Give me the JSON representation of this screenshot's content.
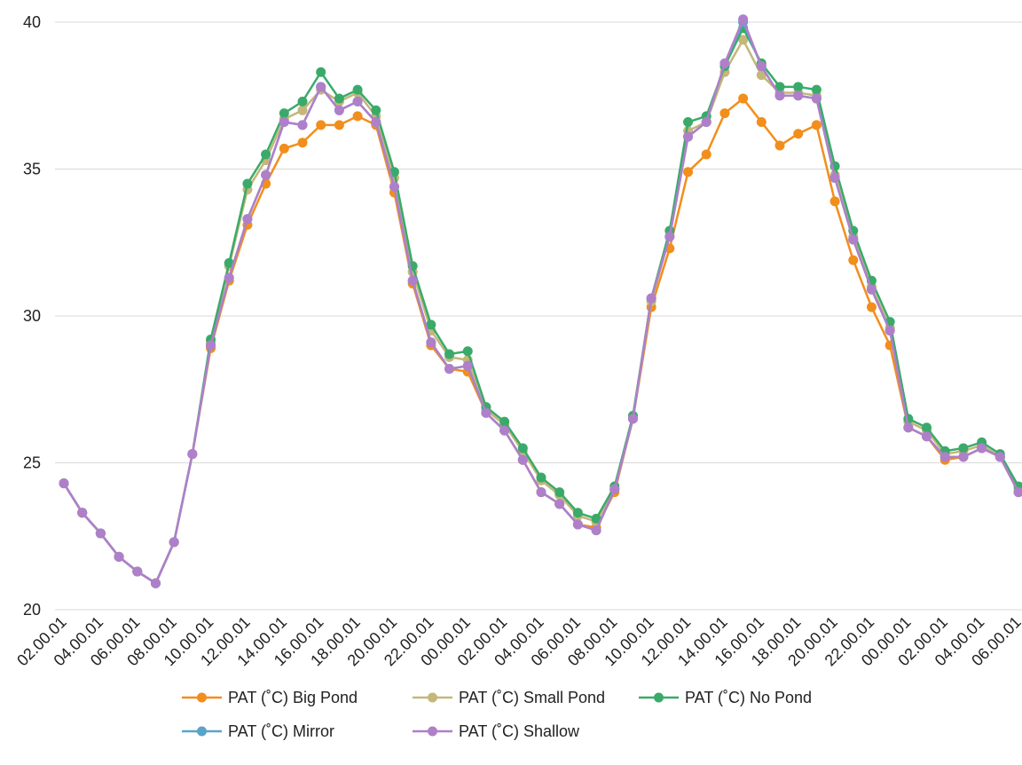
{
  "chart_data": {
    "type": "line",
    "categories": [
      "02.00.01",
      null,
      "04.00.01",
      null,
      "06.00.01",
      null,
      "08.00.01",
      null,
      "10.00.01",
      null,
      "12.00.01",
      null,
      "14.00.01",
      null,
      "16.00.01",
      null,
      "18.00.01",
      null,
      "20.00.01",
      null,
      "22.00.01",
      null,
      "00.00.01",
      null,
      "02.00.01",
      null,
      "04.00.01",
      null,
      "06.00.01",
      null,
      "08.00.01",
      null,
      "10.00.01",
      null,
      "12.00.01",
      null,
      "14.00.01",
      null,
      "16.00.01",
      null,
      "18.00.01",
      null,
      "20.00.01",
      null,
      "22.00.01",
      null,
      "00.00.01",
      null,
      "02.00.01",
      null,
      "04.00.01",
      null,
      "06.00.01"
    ],
    "series": [
      {
        "name": "PAT (˚C) Big Pond",
        "color": "#f28e1c",
        "values": [
          24.3,
          23.3,
          22.6,
          21.8,
          21.3,
          20.9,
          22.3,
          25.3,
          28.9,
          31.2,
          33.1,
          34.5,
          35.7,
          35.9,
          36.5,
          36.5,
          36.8,
          36.5,
          34.2,
          31.1,
          29.0,
          28.2,
          28.1,
          26.7,
          26.1,
          25.1,
          24.0,
          23.6,
          22.9,
          22.8,
          24.0,
          26.5,
          30.3,
          32.3,
          34.9,
          35.5,
          36.9,
          37.4,
          36.6,
          35.8,
          36.2,
          36.5,
          33.9,
          31.9,
          30.3,
          29.0,
          26.2,
          25.9,
          25.1,
          25.2,
          25.5,
          25.2,
          24.0
        ]
      },
      {
        "name": "PAT (˚C) Small Pond",
        "color": "#c4b77a",
        "values": [
          24.3,
          23.3,
          22.6,
          21.8,
          21.3,
          20.9,
          22.3,
          25.3,
          29.1,
          31.7,
          34.3,
          35.3,
          36.7,
          37.0,
          37.7,
          37.3,
          37.6,
          36.8,
          34.7,
          31.5,
          29.5,
          28.6,
          28.5,
          26.8,
          26.3,
          25.4,
          24.4,
          23.9,
          23.2,
          23.0,
          24.1,
          26.6,
          30.5,
          32.7,
          36.3,
          36.6,
          38.3,
          39.4,
          38.2,
          37.6,
          37.6,
          37.5,
          34.8,
          32.7,
          31.0,
          29.6,
          26.4,
          26.1,
          25.3,
          25.4,
          25.6,
          25.2,
          24.1
        ]
      },
      {
        "name": "PAT (˚C) No Pond",
        "color": "#3aaa6a",
        "values": [
          24.3,
          23.3,
          22.6,
          21.8,
          21.3,
          20.9,
          22.3,
          25.3,
          29.2,
          31.8,
          34.5,
          35.5,
          36.9,
          37.3,
          38.3,
          37.4,
          37.7,
          37.0,
          34.9,
          31.7,
          29.7,
          28.7,
          28.8,
          26.9,
          26.4,
          25.5,
          24.5,
          24.0,
          23.3,
          23.1,
          24.2,
          26.6,
          30.6,
          32.9,
          36.6,
          36.8,
          38.5,
          39.8,
          38.6,
          37.8,
          37.8,
          37.7,
          35.1,
          32.9,
          31.2,
          29.8,
          26.5,
          26.2,
          25.4,
          25.5,
          25.7,
          25.3,
          24.2
        ]
      },
      {
        "name": "PAT (˚C) Mirror",
        "color": "#5ba3c9",
        "values": [
          24.3,
          23.3,
          22.6,
          21.8,
          21.3,
          20.9,
          22.3,
          25.3,
          29.0,
          31.3,
          33.3,
          34.8,
          36.6,
          36.5,
          37.8,
          37.0,
          37.3,
          36.6,
          34.4,
          31.2,
          29.1,
          28.2,
          28.3,
          26.7,
          26.1,
          25.1,
          24.0,
          23.6,
          22.9,
          22.7,
          24.1,
          26.5,
          30.6,
          32.7,
          36.1,
          36.6,
          38.6,
          40.0,
          38.5,
          37.5,
          37.5,
          37.4,
          34.7,
          32.6,
          30.9,
          29.5,
          26.2,
          25.9,
          25.2,
          25.2,
          25.5,
          25.2,
          24.0
        ]
      },
      {
        "name": "PAT (˚C) Shallow",
        "color": "#b07fc9",
        "values": [
          24.3,
          23.3,
          22.6,
          21.8,
          21.3,
          20.9,
          22.3,
          25.3,
          29.0,
          31.3,
          33.3,
          34.8,
          36.6,
          36.5,
          37.8,
          37.0,
          37.3,
          36.6,
          34.4,
          31.2,
          29.1,
          28.2,
          28.3,
          26.7,
          26.1,
          25.1,
          24.0,
          23.6,
          22.9,
          22.7,
          24.1,
          26.5,
          30.6,
          32.7,
          36.1,
          36.6,
          38.6,
          40.1,
          38.5,
          37.5,
          37.5,
          37.4,
          34.7,
          32.6,
          30.9,
          29.5,
          26.2,
          25.9,
          25.2,
          25.2,
          25.5,
          25.2,
          24.0
        ]
      }
    ],
    "ylim": [
      20,
      40
    ],
    "yticks": [
      20,
      25,
      30,
      35,
      40
    ],
    "grid": true,
    "legend": "bottom"
  }
}
